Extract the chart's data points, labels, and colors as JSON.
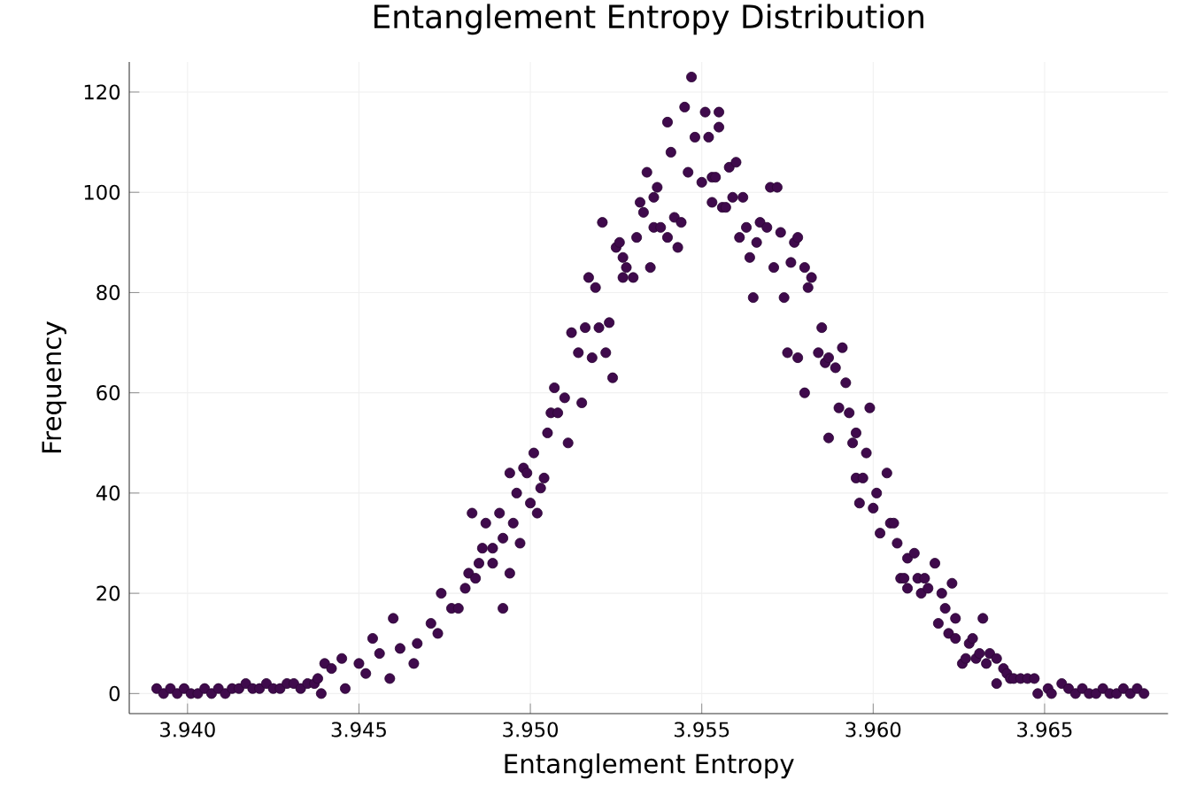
{
  "chart_data": {
    "type": "scatter",
    "title": "Entanglement Entropy Distribution",
    "xlabel": "Entanglement Entropy",
    "ylabel": "Frequency",
    "color": "#3f0a4c",
    "grid": true,
    "xlim": [
      3.9383,
      3.9686
    ],
    "ylim": [
      -4,
      126
    ],
    "xticks": [
      {
        "value": 3.94,
        "label": "3.940"
      },
      {
        "value": 3.945,
        "label": "3.945"
      },
      {
        "value": 3.95,
        "label": "3.950"
      },
      {
        "value": 3.955,
        "label": "3.955"
      },
      {
        "value": 3.96,
        "label": "3.960"
      },
      {
        "value": 3.965,
        "label": "3.965"
      }
    ],
    "yticks": [
      0,
      20,
      40,
      60,
      80,
      100,
      120
    ],
    "x": [
      3.9391,
      3.9393,
      3.9395,
      3.9397,
      3.9399,
      3.9401,
      3.9403,
      3.9405,
      3.9407,
      3.9409,
      3.9411,
      3.9413,
      3.9415,
      3.9417,
      3.9419,
      3.9421,
      3.9423,
      3.9425,
      3.9427,
      3.9429,
      3.9431,
      3.9433,
      3.9435,
      3.9437,
      3.9438,
      3.944,
      3.9439,
      3.9442,
      3.9445,
      3.9446,
      3.945,
      3.9452,
      3.9454,
      3.9456,
      3.9459,
      3.946,
      3.9462,
      3.9466,
      3.9467,
      3.9471,
      3.9473,
      3.9474,
      3.9477,
      3.9479,
      3.9481,
      3.9482,
      3.9484,
      3.9485,
      3.9486,
      3.9489,
      3.9487,
      3.9483,
      3.9491,
      3.9489,
      3.9492,
      3.9492,
      3.9494,
      3.9495,
      3.9497,
      3.9494,
      3.9496,
      3.9498,
      3.9499,
      3.95,
      3.9502,
      3.9501,
      3.9503,
      3.9504,
      3.9505,
      3.9506,
      3.9507,
      3.9508,
      3.951,
      3.9511,
      3.9512,
      3.9514,
      3.9515,
      3.9516,
      3.9518,
      3.952,
      3.9522,
      3.9523,
      3.9524,
      3.9517,
      3.9519,
      3.9521,
      3.9525,
      3.9526,
      3.9527,
      3.9527,
      3.9528,
      3.953,
      3.9531,
      3.9532,
      3.9533,
      3.9534,
      3.9535,
      3.9536,
      3.9536,
      3.9537,
      3.9538,
      3.954,
      3.954,
      3.9541,
      3.9542,
      3.9543,
      3.9544,
      3.9545,
      3.9546,
      3.9547,
      3.9548,
      3.955,
      3.9551,
      3.9552,
      3.9553,
      3.9553,
      3.9555,
      3.9555,
      3.9556,
      3.9558,
      3.9554,
      3.956,
      3.9557,
      3.9559,
      3.9562,
      3.9561,
      3.9563,
      3.9566,
      3.9567,
      3.9569,
      3.9564,
      3.9565,
      3.957,
      3.9572,
      3.9571,
      3.9573,
      3.9574,
      3.9576,
      3.9577,
      3.9578,
      3.958,
      3.9581,
      3.9582,
      3.9575,
      3.9578,
      3.958,
      3.9585,
      3.9584,
      3.9586,
      3.9587,
      3.9589,
      3.9591,
      3.9592,
      3.9587,
      3.959,
      3.9593,
      3.9594,
      3.9595,
      3.9598,
      3.9599,
      3.9595,
      3.9597,
      3.9596,
      3.96,
      3.9601,
      3.9604,
      3.9602,
      3.9605,
      3.9606,
      3.9607,
      3.961,
      3.9612,
      3.9608,
      3.9609,
      3.961,
      3.9613,
      3.9614,
      3.9615,
      3.9616,
      3.9618,
      3.962,
      3.9623,
      3.9621,
      3.9619,
      3.9624,
      3.9622,
      3.9624,
      3.9626,
      3.9627,
      3.9628,
      3.9629,
      3.963,
      3.9631,
      3.9632,
      3.9633,
      3.9634,
      3.9636,
      3.9636,
      3.9638,
      3.9639,
      3.964,
      3.9641,
      3.9643,
      3.9645,
      3.9647,
      3.9648,
      3.9651,
      3.9652,
      3.9655,
      3.9657,
      3.9659,
      3.9661,
      3.9663,
      3.9665,
      3.9667,
      3.9669,
      3.9671,
      3.9673,
      3.9675,
      3.9677,
      3.9679
    ],
    "values": [
      1,
      0,
      1,
      0,
      1,
      0,
      0,
      1,
      0,
      1,
      0,
      1,
      1,
      2,
      1,
      1,
      2,
      1,
      1,
      2,
      2,
      1,
      2,
      2,
      3,
      6,
      0,
      5,
      7,
      1,
      6,
      4,
      11,
      8,
      3,
      15,
      9,
      6,
      10,
      14,
      12,
      20,
      17,
      17,
      21,
      24,
      23,
      26,
      29,
      26,
      34,
      36,
      36,
      29,
      31,
      17,
      24,
      34,
      30,
      44,
      40,
      45,
      44,
      38,
      36,
      48,
      41,
      43,
      52,
      56,
      61,
      56,
      59,
      50,
      72,
      68,
      58,
      73,
      67,
      73,
      68,
      74,
      63,
      83,
      81,
      94,
      89,
      90,
      87,
      83,
      85,
      83,
      91,
      98,
      96,
      104,
      85,
      93,
      99,
      101,
      93,
      91,
      114,
      108,
      95,
      89,
      94,
      117,
      104,
      123,
      111,
      102,
      116,
      111,
      103,
      98,
      116,
      113,
      97,
      105,
      103,
      106,
      97,
      99,
      99,
      91,
      93,
      90,
      94,
      93,
      87,
      79,
      101,
      101,
      85,
      92,
      79,
      86,
      90,
      91,
      85,
      81,
      83,
      68,
      67,
      60,
      73,
      68,
      66,
      67,
      65,
      69,
      62,
      51,
      57,
      56,
      50,
      52,
      48,
      57,
      43,
      43,
      38,
      37,
      40,
      44,
      32,
      34,
      34,
      30,
      27,
      28,
      23,
      23,
      21,
      23,
      20,
      23,
      21,
      26,
      20,
      22,
      17,
      14,
      15,
      12,
      11,
      6,
      7,
      10,
      11,
      7,
      8,
      15,
      6,
      8,
      7,
      2,
      5,
      4,
      3,
      3,
      3,
      3,
      3,
      0,
      1,
      0,
      2,
      1,
      0,
      1,
      0,
      0,
      1,
      0,
      0,
      1,
      0,
      1,
      0
    ]
  }
}
